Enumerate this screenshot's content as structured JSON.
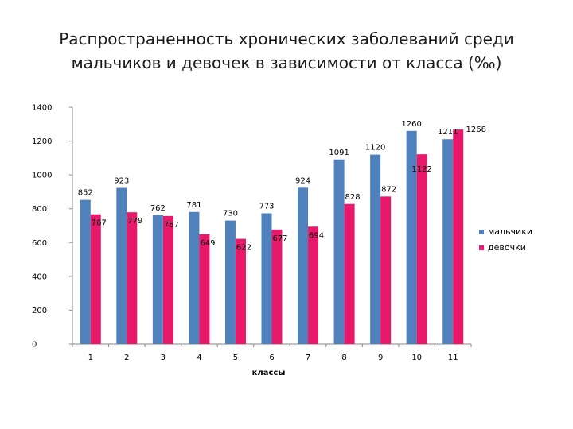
{
  "title_line1": "Распространенность хронических заболеваний среди",
  "title_line2": "мальчиков и девочек в зависимости от класса (‰)",
  "chart_data": {
    "type": "bar",
    "categories": [
      "1",
      "2",
      "3",
      "4",
      "5",
      "6",
      "7",
      "8",
      "9",
      "10",
      "11"
    ],
    "series": [
      {
        "name": "мальчики",
        "color": "#4F81BD",
        "values": [
          852,
          923,
          762,
          781,
          730,
          773,
          924,
          1091,
          1120,
          1260,
          1211
        ]
      },
      {
        "name": "девочки",
        "color": "#E8196A",
        "values": [
          767,
          779,
          757,
          649,
          622,
          677,
          694,
          828,
          872,
          1122,
          1268
        ]
      }
    ],
    "xlabel": "классы",
    "ylabel": "",
    "ylim": [
      0,
      1400
    ],
    "yticks": [
      0,
      200,
      400,
      600,
      800,
      1000,
      1200,
      1400
    ],
    "grid": false,
    "legend_position": "right"
  }
}
